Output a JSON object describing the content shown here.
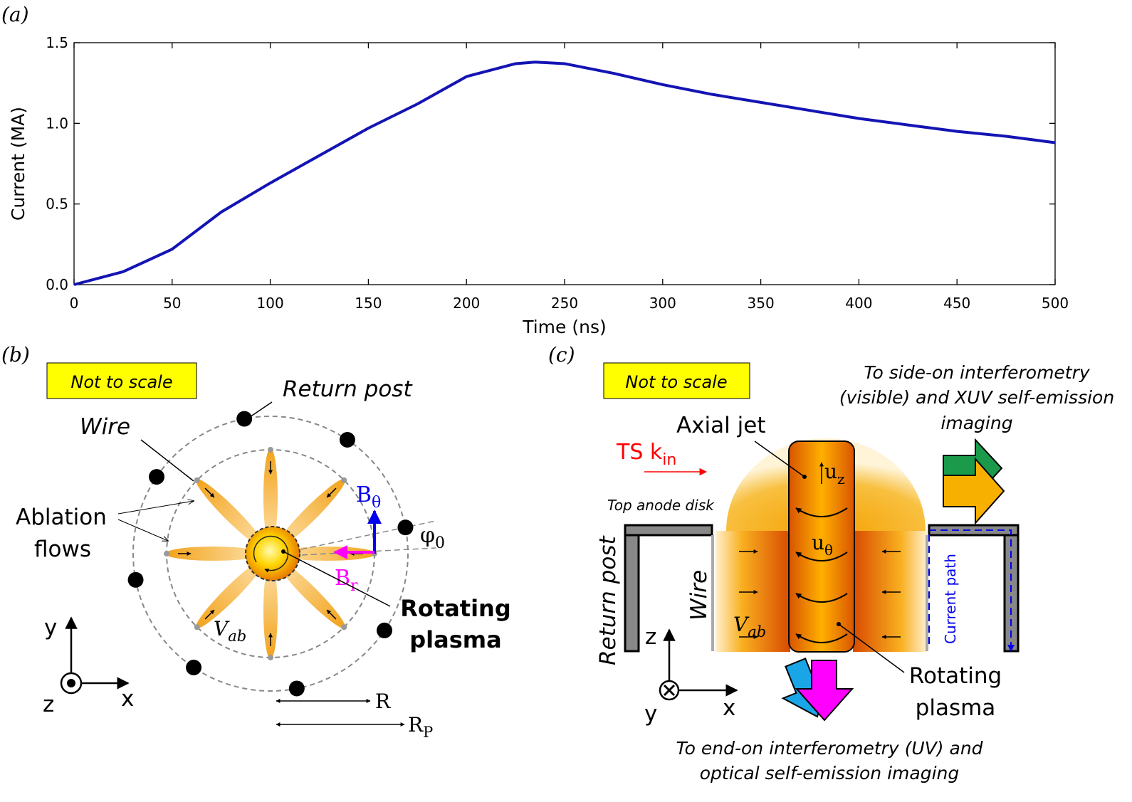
{
  "chart_data": {
    "type": "line",
    "label": "(a)",
    "x": [
      0,
      25,
      50,
      75,
      100,
      125,
      150,
      175,
      200,
      225,
      235,
      250,
      275,
      300,
      325,
      350,
      375,
      400,
      425,
      450,
      475,
      500
    ],
    "values": [
      0,
      0.08,
      0.22,
      0.45,
      0.63,
      0.8,
      0.97,
      1.12,
      1.29,
      1.37,
      1.38,
      1.37,
      1.31,
      1.24,
      1.18,
      1.13,
      1.08,
      1.03,
      0.99,
      0.95,
      0.92,
      0.88
    ],
    "color": "#1414b4",
    "xlabel": "Time (ns)",
    "ylabel": "Current (MA)",
    "xlim": [
      0,
      500
    ],
    "ylim": [
      0,
      1.5
    ],
    "xticks": [
      0,
      50,
      100,
      150,
      200,
      250,
      300,
      350,
      400,
      450,
      500
    ],
    "yticks": [
      {
        "value": 0,
        "label": "0.0"
      },
      0.5,
      {
        "value": 1,
        "label": "1.0"
      },
      1.5
    ]
  },
  "panel_b": {
    "label": "(b)",
    "note": "Not to scale",
    "return_post": "Return post",
    "wire": "Wire",
    "ablation_flows": [
      "Ablation",
      "flows"
    ],
    "b_theta": {
      "main": "B",
      "sub": "θ"
    },
    "phi0": {
      "main": "φ",
      "sub": "0"
    },
    "b_r": {
      "main": "B",
      "sub": "r"
    },
    "rotating_plasma": [
      "Rotating",
      "plasma"
    ],
    "v_ab": {
      "main": "V",
      "sub": "ab"
    },
    "axis_y": "y",
    "axis_x": "x",
    "axis_z": "z",
    "r": "R",
    "r_p": {
      "main": "R",
      "sub": "P"
    }
  },
  "panel_c": {
    "label": "(c)",
    "note": "Not to scale",
    "side_on": [
      "To side-on interferometry",
      "(visible) and XUV self-emission",
      "imaging"
    ],
    "axial_jet": "Axial jet",
    "ts_k": {
      "main": "TS k",
      "sub": "in"
    },
    "top_anode": "Top anode disk",
    "return_post": "Return post",
    "wire": "Wire",
    "u_z": {
      "main": "u",
      "sub": "z"
    },
    "u_theta": {
      "main": "u",
      "sub": "θ"
    },
    "v_ab": {
      "main": "V",
      "sub": "ab"
    },
    "current_path": "Current path",
    "axis_z": "z",
    "axis_x": "x",
    "axis_y": "y",
    "rotating_plasma": [
      "Rotating",
      "plasma"
    ],
    "end_on": [
      "To end-on interferometry (UV) and",
      "optical self-emission imaging"
    ]
  }
}
